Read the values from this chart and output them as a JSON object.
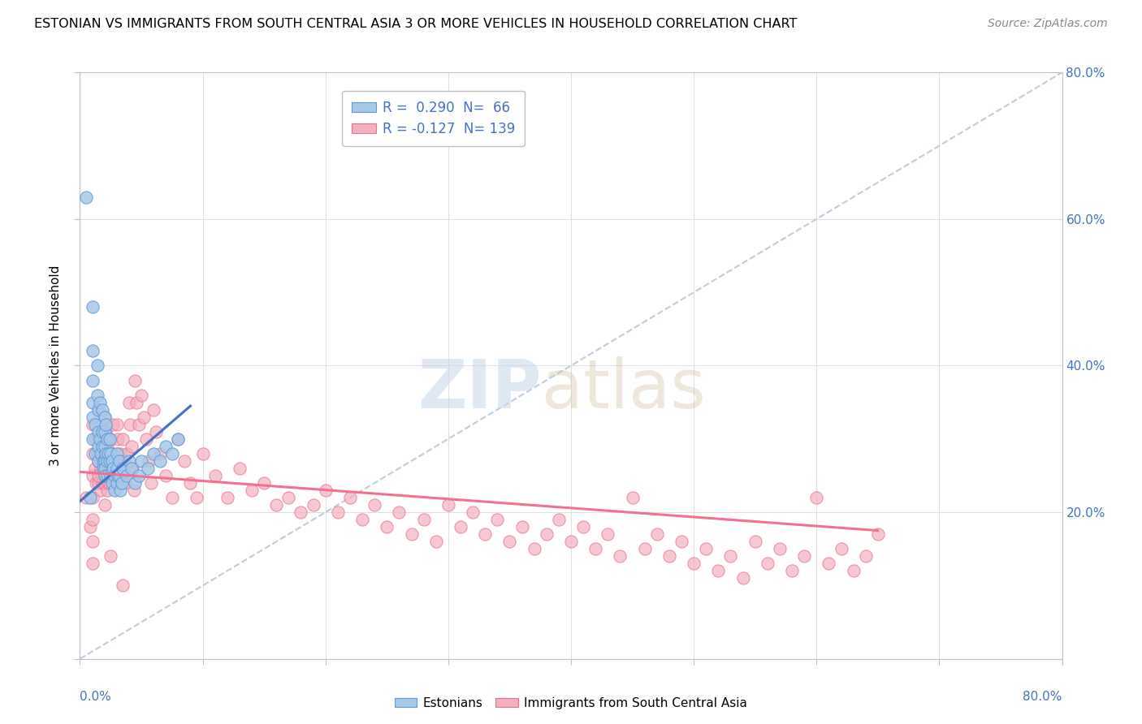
{
  "title": "ESTONIAN VS IMMIGRANTS FROM SOUTH CENTRAL ASIA 3 OR MORE VEHICLES IN HOUSEHOLD CORRELATION CHART",
  "source": "Source: ZipAtlas.com",
  "ylabel": "3 or more Vehicles in Household",
  "ylabel_right_ticks": [
    "80.0%",
    "60.0%",
    "40.0%",
    "20.0%"
  ],
  "ylabel_right_vals": [
    0.8,
    0.6,
    0.4,
    0.2
  ],
  "color_estonian": "#a8c8e8",
  "color_immigrant": "#f4b0c0",
  "color_estonian_edge": "#5b9bd5",
  "color_immigrant_edge": "#e87090",
  "color_estonian_line": "#4472c4",
  "color_immigrant_line": "#f47090",
  "color_text_blue": "#4472c4",
  "color_ref_line": "#b0c0d8",
  "xlim": [
    0.0,
    0.8
  ],
  "ylim": [
    0.0,
    0.8
  ],
  "estonian_x": [
    0.005,
    0.008,
    0.01,
    0.01,
    0.01,
    0.01,
    0.01,
    0.01,
    0.012,
    0.012,
    0.014,
    0.014,
    0.015,
    0.015,
    0.015,
    0.015,
    0.016,
    0.016,
    0.017,
    0.018,
    0.018,
    0.018,
    0.019,
    0.019,
    0.02,
    0.02,
    0.02,
    0.02,
    0.02,
    0.02,
    0.021,
    0.021,
    0.022,
    0.022,
    0.022,
    0.023,
    0.024,
    0.024,
    0.025,
    0.025,
    0.026,
    0.026,
    0.027,
    0.028,
    0.028,
    0.03,
    0.03,
    0.03,
    0.031,
    0.032,
    0.032,
    0.033,
    0.034,
    0.035,
    0.038,
    0.04,
    0.042,
    0.045,
    0.048,
    0.05,
    0.055,
    0.06,
    0.065,
    0.07,
    0.075,
    0.08
  ],
  "estonian_y": [
    0.63,
    0.22,
    0.48,
    0.42,
    0.38,
    0.35,
    0.33,
    0.3,
    0.28,
    0.32,
    0.4,
    0.36,
    0.34,
    0.31,
    0.29,
    0.27,
    0.35,
    0.3,
    0.28,
    0.34,
    0.31,
    0.29,
    0.27,
    0.26,
    0.33,
    0.31,
    0.29,
    0.27,
    0.26,
    0.25,
    0.32,
    0.28,
    0.3,
    0.27,
    0.25,
    0.28,
    0.3,
    0.27,
    0.28,
    0.25,
    0.27,
    0.24,
    0.26,
    0.25,
    0.23,
    0.28,
    0.26,
    0.24,
    0.25,
    0.27,
    0.25,
    0.23,
    0.24,
    0.26,
    0.25,
    0.27,
    0.26,
    0.24,
    0.25,
    0.27,
    0.26,
    0.28,
    0.27,
    0.29,
    0.28,
    0.3
  ],
  "immigrant_x": [
    0.005,
    0.008,
    0.01,
    0.01,
    0.01,
    0.01,
    0.01,
    0.01,
    0.01,
    0.012,
    0.012,
    0.013,
    0.014,
    0.015,
    0.015,
    0.015,
    0.015,
    0.016,
    0.016,
    0.017,
    0.017,
    0.018,
    0.018,
    0.018,
    0.019,
    0.019,
    0.02,
    0.02,
    0.02,
    0.02,
    0.02,
    0.021,
    0.021,
    0.022,
    0.022,
    0.022,
    0.023,
    0.023,
    0.024,
    0.024,
    0.025,
    0.025,
    0.026,
    0.027,
    0.027,
    0.028,
    0.029,
    0.03,
    0.03,
    0.03,
    0.031,
    0.032,
    0.032,
    0.033,
    0.034,
    0.035,
    0.036,
    0.037,
    0.038,
    0.04,
    0.041,
    0.042,
    0.043,
    0.044,
    0.045,
    0.046,
    0.048,
    0.05,
    0.052,
    0.054,
    0.056,
    0.058,
    0.06,
    0.062,
    0.065,
    0.07,
    0.075,
    0.08,
    0.085,
    0.09,
    0.095,
    0.1,
    0.11,
    0.12,
    0.13,
    0.14,
    0.15,
    0.16,
    0.17,
    0.18,
    0.19,
    0.2,
    0.21,
    0.22,
    0.23,
    0.24,
    0.25,
    0.26,
    0.27,
    0.28,
    0.29,
    0.3,
    0.31,
    0.32,
    0.33,
    0.34,
    0.35,
    0.36,
    0.37,
    0.38,
    0.39,
    0.4,
    0.41,
    0.42,
    0.43,
    0.44,
    0.45,
    0.46,
    0.47,
    0.48,
    0.49,
    0.5,
    0.51,
    0.52,
    0.53,
    0.54,
    0.55,
    0.56,
    0.57,
    0.58,
    0.59,
    0.6,
    0.61,
    0.62,
    0.63,
    0.64,
    0.65,
    0.015,
    0.025,
    0.035
  ],
  "immigrant_y": [
    0.22,
    0.18,
    0.32,
    0.28,
    0.25,
    0.22,
    0.19,
    0.16,
    0.13,
    0.3,
    0.26,
    0.24,
    0.28,
    0.34,
    0.3,
    0.27,
    0.24,
    0.32,
    0.28,
    0.26,
    0.23,
    0.3,
    0.27,
    0.24,
    0.28,
    0.25,
    0.33,
    0.3,
    0.27,
    0.24,
    0.21,
    0.31,
    0.27,
    0.29,
    0.26,
    0.23,
    0.28,
    0.24,
    0.27,
    0.24,
    0.3,
    0.26,
    0.28,
    0.32,
    0.28,
    0.26,
    0.24,
    0.32,
    0.28,
    0.25,
    0.3,
    0.27,
    0.24,
    0.28,
    0.25,
    0.3,
    0.27,
    0.24,
    0.28,
    0.35,
    0.32,
    0.29,
    0.26,
    0.23,
    0.38,
    0.35,
    0.32,
    0.36,
    0.33,
    0.3,
    0.27,
    0.24,
    0.34,
    0.31,
    0.28,
    0.25,
    0.22,
    0.3,
    0.27,
    0.24,
    0.22,
    0.28,
    0.25,
    0.22,
    0.26,
    0.23,
    0.24,
    0.21,
    0.22,
    0.2,
    0.21,
    0.23,
    0.2,
    0.22,
    0.19,
    0.21,
    0.18,
    0.2,
    0.17,
    0.19,
    0.16,
    0.21,
    0.18,
    0.2,
    0.17,
    0.19,
    0.16,
    0.18,
    0.15,
    0.17,
    0.19,
    0.16,
    0.18,
    0.15,
    0.17,
    0.14,
    0.22,
    0.15,
    0.17,
    0.14,
    0.16,
    0.13,
    0.15,
    0.12,
    0.14,
    0.11,
    0.16,
    0.13,
    0.15,
    0.12,
    0.14,
    0.22,
    0.13,
    0.15,
    0.12,
    0.14,
    0.17,
    0.25,
    0.14,
    0.1
  ],
  "est_trend_x0": 0.0,
  "est_trend_x1": 0.09,
  "est_trend_y0": 0.215,
  "est_trend_y1": 0.345,
  "imm_trend_x0": 0.0,
  "imm_trend_x1": 0.65,
  "imm_trend_y0": 0.255,
  "imm_trend_y1": 0.175
}
